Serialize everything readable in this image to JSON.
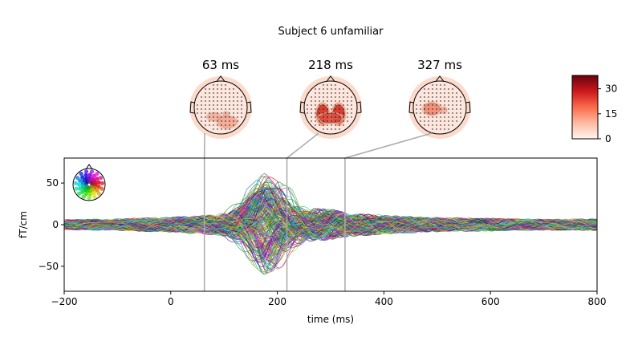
{
  "chart_data": {
    "type": "line",
    "title": "Subject 6 unfamiliar",
    "xlabel": "time (ms)",
    "ylabel": "fT/cm",
    "xlim": [
      -200,
      800
    ],
    "ylim": [
      -80,
      80
    ],
    "xticks": [
      -200,
      0,
      200,
      400,
      600,
      800
    ],
    "yticks": [
      -50,
      0,
      50
    ],
    "topomap_times": [
      {
        "time": 63,
        "label": "63 ms"
      },
      {
        "time": 218,
        "label": "218 ms"
      },
      {
        "time": 327,
        "label": "327 ms"
      }
    ],
    "colorbar": {
      "range": [
        0,
        38
      ],
      "ticks": [
        0,
        15,
        30
      ],
      "cmap": "Reds"
    },
    "channel_color_legend": "spatial-colors",
    "envelope": {
      "x": [
        -200,
        -100,
        0,
        50,
        90,
        130,
        175,
        220,
        260,
        300,
        330,
        400,
        500,
        600,
        700,
        800
      ],
      "upper": [
        12,
        14,
        18,
        20,
        22,
        35,
        62,
        45,
        38,
        38,
        30,
        22,
        16,
        14,
        12,
        12
      ],
      "lower": [
        -12,
        -14,
        -18,
        -22,
        -28,
        -35,
        -60,
        -48,
        -40,
        -35,
        -28,
        -22,
        -18,
        -16,
        -14,
        -15
      ]
    },
    "n_channels": 204
  }
}
